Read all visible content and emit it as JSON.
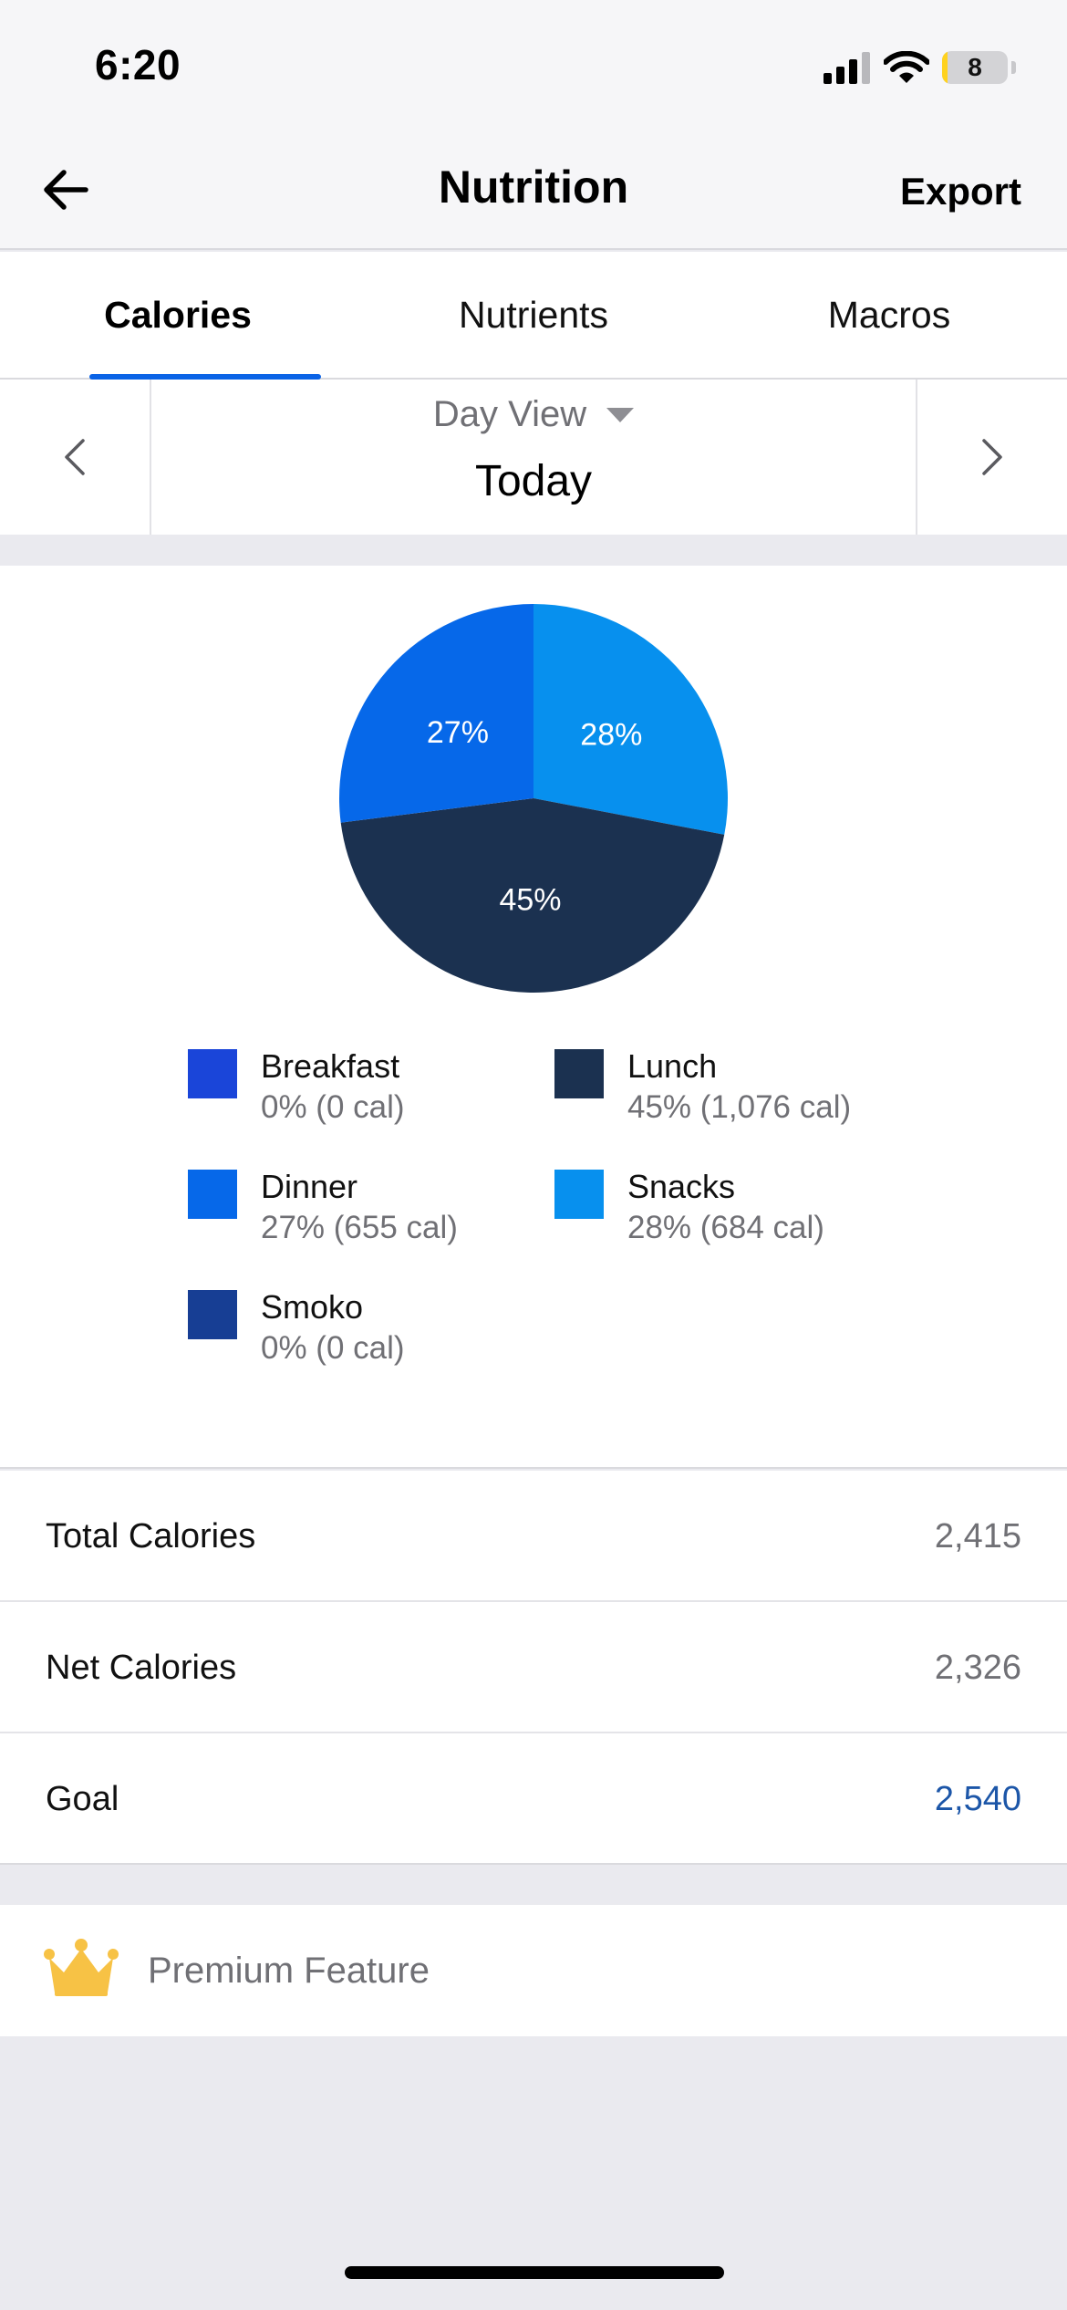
{
  "status_bar": {
    "time": "6:20",
    "battery_level": "8",
    "battery_fraction": 0.08
  },
  "nav": {
    "title": "Nutrition",
    "export_label": "Export"
  },
  "tabs": [
    {
      "label": "Calories",
      "active": true
    },
    {
      "label": "Nutrients",
      "active": false
    },
    {
      "label": "Macros",
      "active": false
    }
  ],
  "date_nav": {
    "view_label": "Day View",
    "date_label": "Today"
  },
  "chart_data": {
    "type": "pie",
    "slices": [
      {
        "name": "Breakfast",
        "percent": 0,
        "calories": 0,
        "color": "#1a45d9",
        "label": ""
      },
      {
        "name": "Lunch",
        "percent": 45,
        "calories": 1076,
        "color": "#1b3150",
        "label": "45%"
      },
      {
        "name": "Dinner",
        "percent": 27,
        "calories": 655,
        "color": "#0668e9",
        "label": "27%"
      },
      {
        "name": "Snacks",
        "percent": 28,
        "calories": 684,
        "color": "#0790ee",
        "label": "28%"
      },
      {
        "name": "Smoko",
        "percent": 0,
        "calories": 0,
        "color": "#173e94",
        "label": ""
      }
    ]
  },
  "legend": [
    {
      "name": "Breakfast",
      "value": "0% (0 cal)",
      "color": "#1a45d9"
    },
    {
      "name": "Lunch",
      "value": "45% (1,076 cal)",
      "color": "#1b3150"
    },
    {
      "name": "Dinner",
      "value": "27% (655 cal)",
      "color": "#0668e9"
    },
    {
      "name": "Snacks",
      "value": "28% (684 cal)",
      "color": "#0790ee"
    },
    {
      "name": "Smoko",
      "value": "0% (0 cal)",
      "color": "#173e94"
    }
  ],
  "totals": [
    {
      "label": "Total Calories",
      "value": "2,415"
    },
    {
      "label": "Net Calories",
      "value": "2,326"
    },
    {
      "label": "Goal",
      "value": "2,540"
    }
  ],
  "premium": {
    "label": "Premium Feature"
  },
  "colors": {
    "accent": "#0a63e6",
    "goal": "#1c56a8",
    "crown": "#f7c245"
  }
}
